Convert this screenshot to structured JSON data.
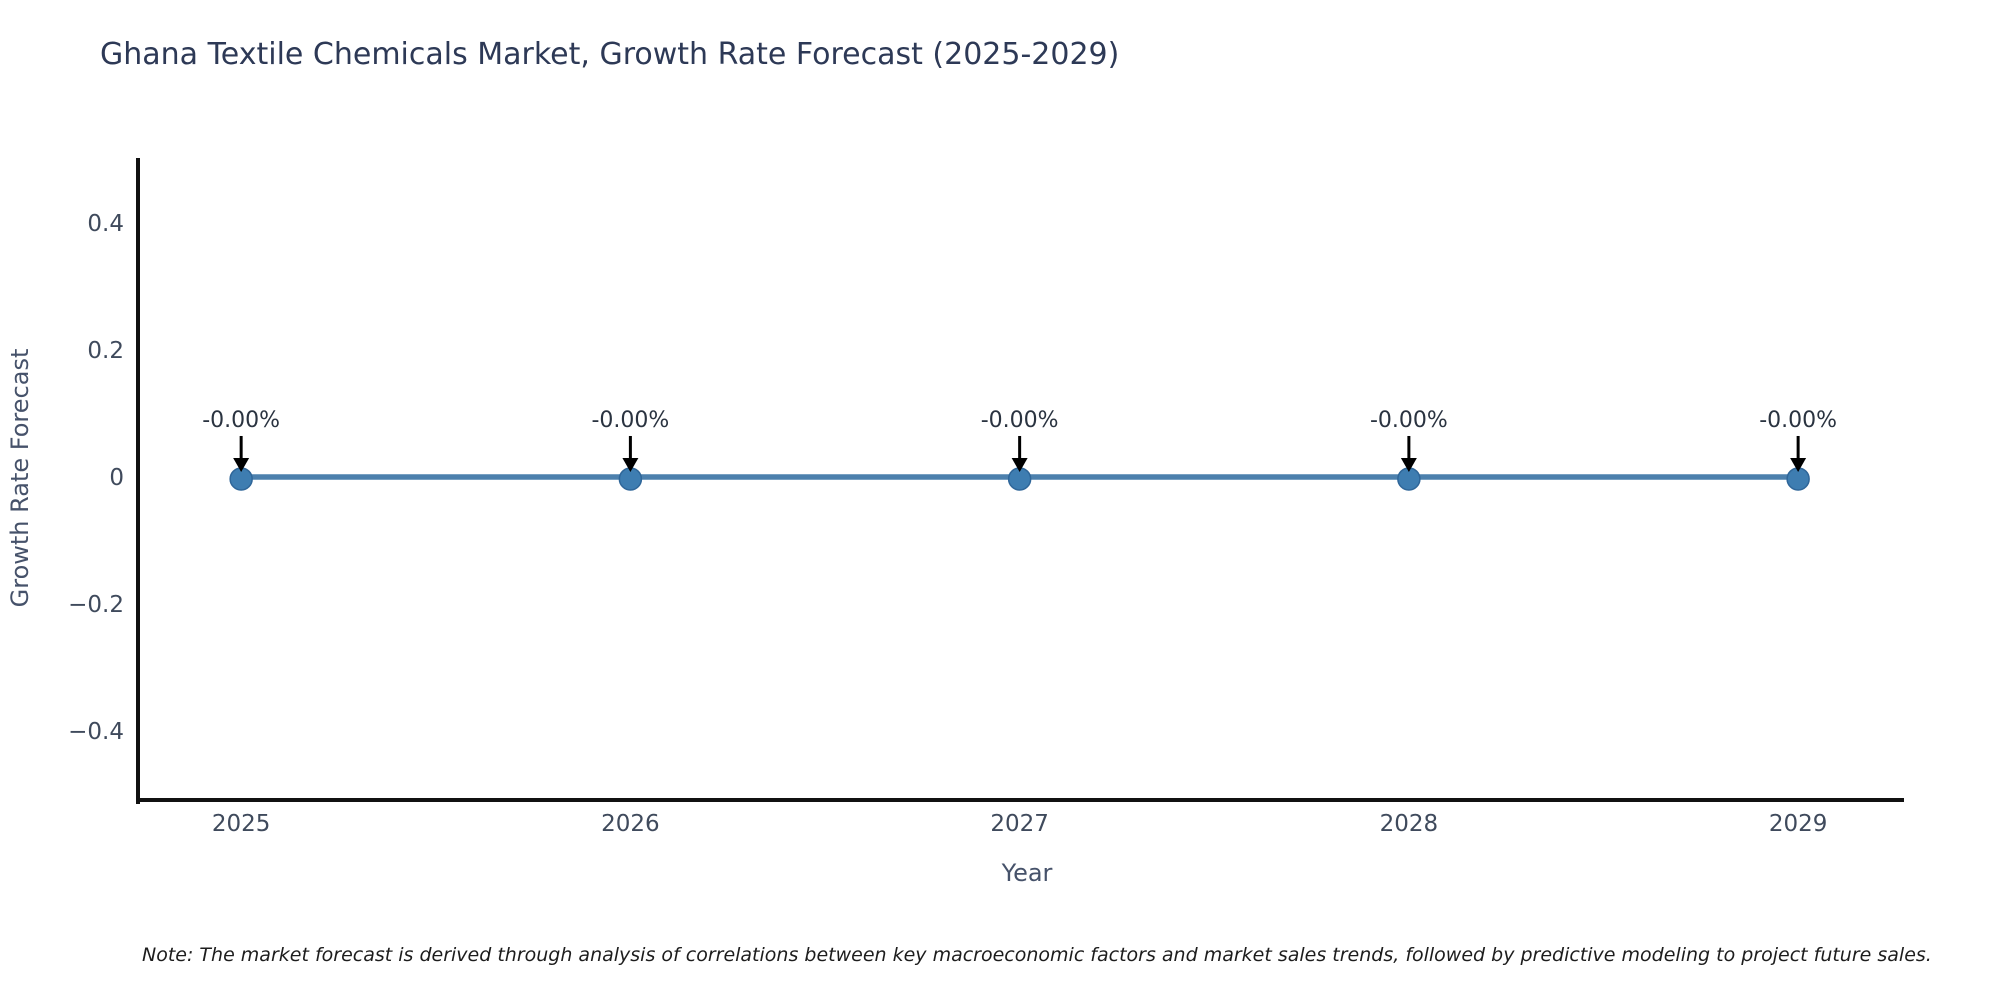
{
  "chart_data": {
    "type": "line",
    "title": "Ghana Textile Chemicals Market, Growth Rate Forecast (2025-2029)",
    "xlabel": "Year",
    "ylabel": "Growth Rate Forecast",
    "x": [
      2025,
      2026,
      2027,
      2028,
      2029
    ],
    "series": [
      {
        "name": "Growth Rate Forecast",
        "values": [
          0,
          0,
          0,
          0,
          0
        ]
      }
    ],
    "point_labels": [
      "-0.00%",
      "-0.00%",
      "-0.00%",
      "-0.00%",
      "-0.00%"
    ],
    "xtick_labels": [
      "2025",
      "2026",
      "2027",
      "2028",
      "2029"
    ],
    "ytick_values": [
      0.4,
      0.2,
      0,
      -0.2,
      -0.4
    ],
    "ytick_labels": [
      "0.4",
      "0.2",
      "0",
      "−0.2",
      "−0.4"
    ],
    "xlim": [
      2024.735,
      2029.272
    ],
    "ylim": [
      -0.5087,
      0.4992
    ],
    "grid": false,
    "legend": "none",
    "note": "Note: The market forecast is derived through analysis of correlations between key macroeconomic factors and market sales trends, followed by predictive modeling to project future sales.",
    "colors": {
      "line": "#4c80ad",
      "marker": "#3e7db1",
      "marker_edge": "#2f6699",
      "arrow": "#000000",
      "annotation_text": "#2a3340",
      "axis": "#111111",
      "tick_label": "#3f4a5c",
      "axis_label": "#46526a",
      "title": "#2d3956",
      "note": "#1d1d1d",
      "background": "#ffffff"
    }
  }
}
